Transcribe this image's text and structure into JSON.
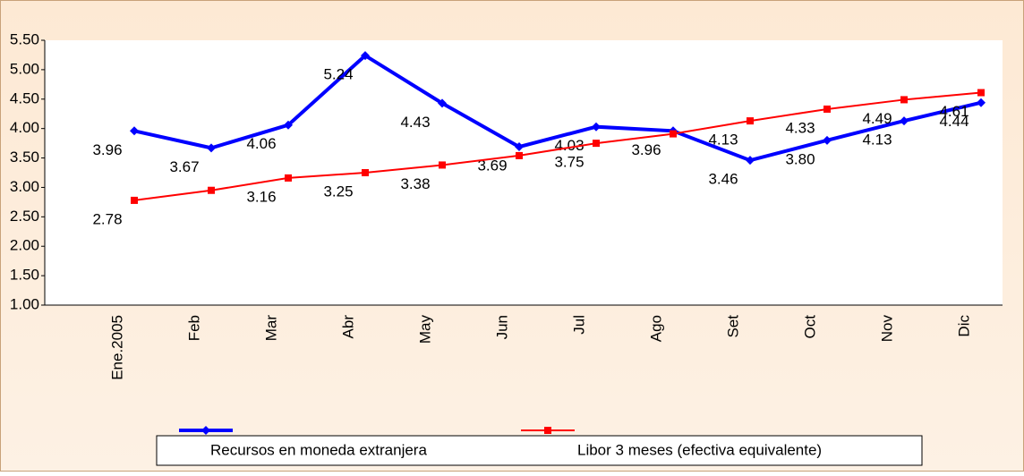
{
  "chart_data": {
    "type": "line",
    "categories": [
      "Ene.2005",
      "Feb",
      "Mar",
      "Abr",
      "May",
      "Jun",
      "Jul",
      "Ago",
      "Set",
      "Oct",
      "Nov",
      "Dic"
    ],
    "series": [
      {
        "name": "Recursos en moneda extranjera",
        "color": "#0000ff",
        "values": [
          3.96,
          3.67,
          4.06,
          5.24,
          4.43,
          3.69,
          4.03,
          3.96,
          3.46,
          3.8,
          4.13,
          4.44
        ],
        "value_labels": [
          "3.96",
          "3.67",
          "4.06",
          "5.24",
          "4.43",
          "3.69",
          "4.03",
          "3.96",
          "3.46",
          "3.80",
          "4.13",
          "4.44"
        ]
      },
      {
        "name": "Libor 3 meses (efectiva equivalente)",
        "color": "#ff0000",
        "values": [
          2.78,
          2.95,
          3.16,
          3.25,
          3.38,
          3.54,
          3.75,
          3.91,
          4.13,
          4.33,
          4.49,
          4.61
        ],
        "value_labels": [
          "2.78",
          null,
          "3.16",
          "3.25",
          "3.38",
          null,
          "3.75",
          null,
          "4.13",
          "4.33",
          "4.49",
          "4.61"
        ]
      }
    ],
    "ylim": [
      1.0,
      5.5
    ],
    "yticks": [
      {
        "value": 1,
        "label": "1.00"
      },
      {
        "value": 1.5,
        "label": "1.50"
      },
      {
        "value": 2,
        "label": "2.00"
      },
      {
        "value": 2.5,
        "label": "2.50"
      },
      {
        "value": 3,
        "label": "3.00"
      },
      {
        "value": 3.5,
        "label": "3.50"
      },
      {
        "value": 4,
        "label": "4.00"
      },
      {
        "value": 4.5,
        "label": "4.50"
      },
      {
        "value": 5,
        "label": "5.00"
      },
      {
        "value": 5.5,
        "label": "5.50"
      }
    ],
    "grid": false
  }
}
